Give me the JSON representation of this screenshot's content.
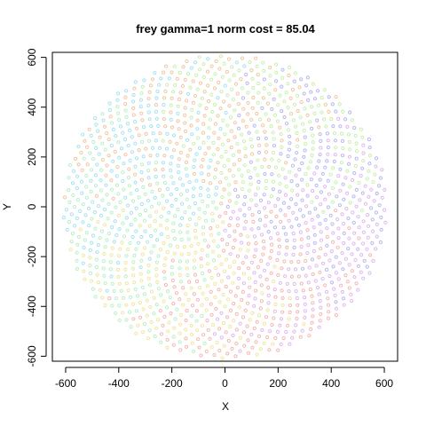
{
  "chart_data": {
    "type": "scatter",
    "title": "frey gamma=1 norm cost = 85.04",
    "xlabel": "X",
    "ylabel": "Y",
    "xlim": [
      -650,
      650
    ],
    "ylim": [
      -620,
      620
    ],
    "xticks": [
      -600,
      -400,
      -200,
      0,
      200,
      400,
      600
    ],
    "yticks": [
      -600,
      -400,
      -200,
      0,
      200,
      400,
      600
    ],
    "xtick_labels": [
      "-600",
      "-400",
      "-200",
      "0",
      "200",
      "400",
      "600"
    ],
    "ytick_labels": [
      "-600",
      "-400",
      "-200",
      "0",
      "200",
      "400",
      "600"
    ],
    "marker": "open-circle",
    "grid": false,
    "legend": "none",
    "point_cloud": {
      "shape": "ellipse",
      "center": [
        0,
        0
      ],
      "semi_axis_x": 610,
      "semi_axis_y": 610,
      "approx_count": 1500
    },
    "palette": [
      "#a6e3f0",
      "#b8f0c8",
      "#f0e6a0",
      "#f3b8b0",
      "#e0b8f0",
      "#b8b8f0",
      "#c8f0b0",
      "#f0c8a0"
    ]
  }
}
